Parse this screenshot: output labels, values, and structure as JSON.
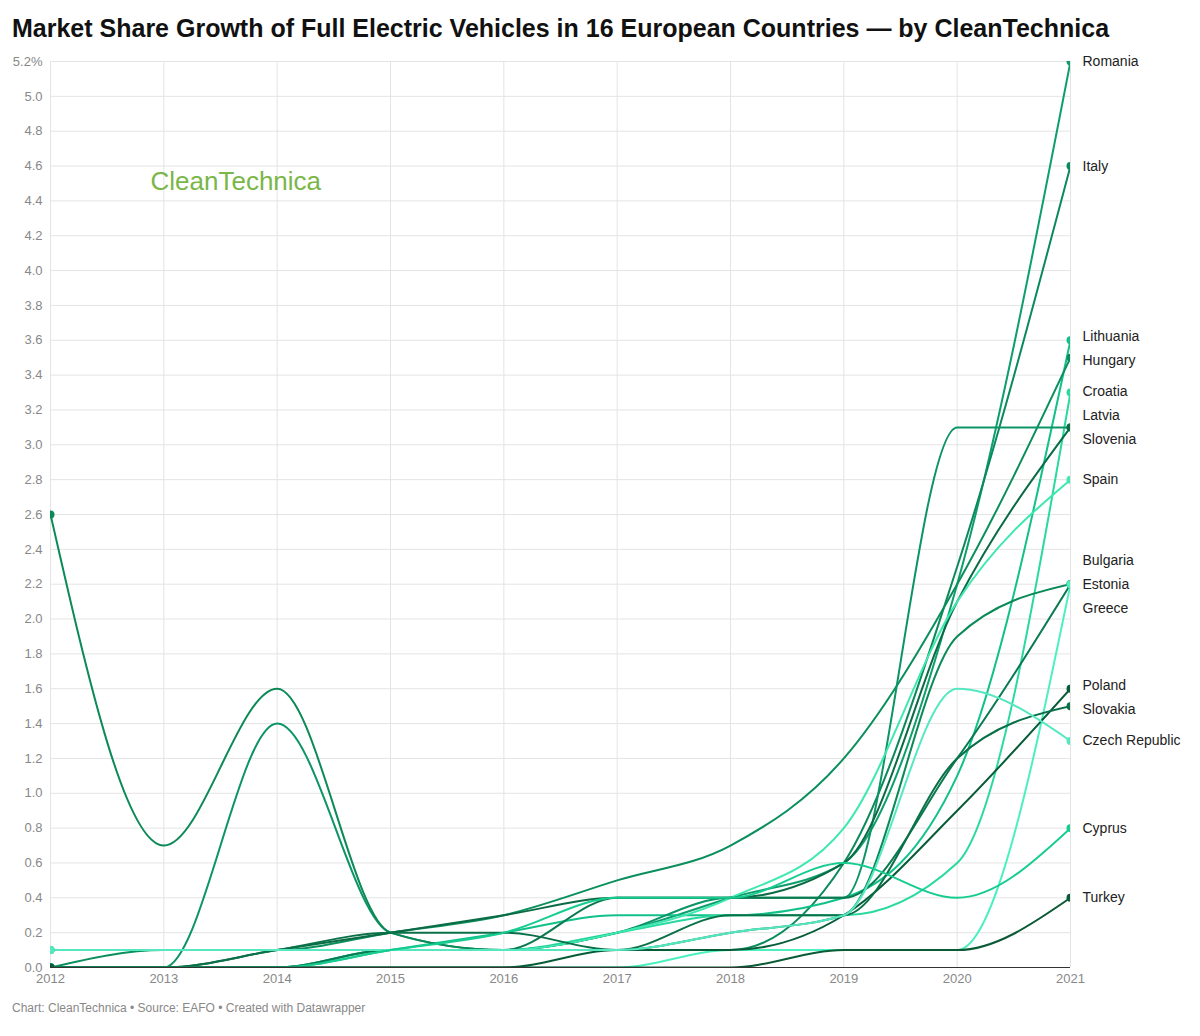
{
  "chart_data": {
    "type": "line",
    "title": "Market Share Growth of Full Electric Vehicles in 16 European Countries — by CleanTechnica",
    "watermark": "CleanTechnica",
    "caption": "Chart: CleanTechnica • Source: EAFO • Created with Datawrapper",
    "x": [
      2012,
      2013,
      2014,
      2015,
      2016,
      2017,
      2018,
      2019,
      2020,
      2021
    ],
    "xlim": [
      2012,
      2021
    ],
    "xticks": [
      2012,
      2013,
      2014,
      2015,
      2016,
      2017,
      2018,
      2019,
      2020,
      2021
    ],
    "ylim": [
      0,
      5.2
    ],
    "yticks": [
      {
        "value": 0,
        "label": "0.0"
      },
      0.2,
      0.4,
      0.6,
      0.8,
      {
        "value": 1,
        "label": "1.0"
      },
      1.2,
      1.4,
      1.6,
      1.8,
      {
        "value": 2,
        "label": "2.0"
      },
      2.2,
      2.4,
      2.6,
      2.8,
      {
        "value": 3,
        "label": "3.0"
      },
      3.2,
      3.4,
      3.6,
      3.8,
      {
        "value": 4,
        "label": "4.0"
      },
      4.2,
      4.4,
      4.6,
      4.8,
      {
        "value": 5,
        "label": "5.0"
      },
      {
        "value": 5.2,
        "label": "5.2%"
      }
    ],
    "grid": true,
    "marker": "circle",
    "series": [
      {
        "name": "Romania",
        "color": "#0e9e6e",
        "values": [
          0,
          0,
          0,
          0.1,
          0.1,
          0.2,
          0.4,
          0.6,
          2.2,
          5.2
        ]
      },
      {
        "name": "Italy",
        "color": "#0a8a5a",
        "values": [
          0.1,
          0.1,
          0.1,
          0.1,
          0.1,
          0.1,
          0.1,
          0.6,
          2.3,
          4.6
        ]
      },
      {
        "name": "Lithuania",
        "color": "#12c18a",
        "values": [
          0,
          0,
          0,
          0.1,
          0.2,
          0.3,
          0.3,
          0.4,
          1.1,
          3.6
        ]
      },
      {
        "name": "Hungary",
        "color": "#0a8f5c",
        "values": [
          0,
          0.1,
          0.1,
          0.2,
          0.3,
          0.5,
          0.7,
          1.2,
          2.2,
          3.5
        ]
      },
      {
        "name": "Croatia",
        "color": "#2ad9a0",
        "values": [
          0,
          0,
          0,
          0.1,
          0.1,
          0.2,
          0.3,
          0.3,
          0.6,
          3.3
        ]
      },
      {
        "name": "Latvia",
        "color": "#0b9466",
        "values": [
          0,
          0,
          1.4,
          0.2,
          0.1,
          0.2,
          0.4,
          0.4,
          3.1,
          3.1
        ]
      },
      {
        "name": "Slovenia",
        "color": "#0b6b45",
        "values": [
          0,
          0,
          0.1,
          0.2,
          0.3,
          0.4,
          0.4,
          0.6,
          2.1,
          3.1
        ]
      },
      {
        "name": "Spain",
        "color": "#3ee8b0",
        "values": [
          0.1,
          0.1,
          0.1,
          0.1,
          0.1,
          0.2,
          0.4,
          0.8,
          2.1,
          2.8
        ]
      },
      {
        "name": "Bulgaria",
        "color": "#0a7a50",
        "values": [
          0,
          0,
          0,
          0.1,
          0.1,
          0.4,
          0.4,
          0.4,
          1.2,
          2.2
        ]
      },
      {
        "name": "Estonia",
        "color": "#0b8a58",
        "values": [
          2.6,
          0.7,
          1.6,
          0.2,
          0.1,
          0.1,
          0.2,
          0.3,
          1.9,
          2.2
        ]
      },
      {
        "name": "Greece",
        "color": "#4cf0bf",
        "values": [
          0,
          0,
          0,
          0,
          0,
          0,
          0.1,
          0.1,
          0.1,
          2.2
        ]
      },
      {
        "name": "Poland",
        "color": "#075c38",
        "values": [
          0,
          0,
          0,
          0,
          0,
          0.1,
          0.1,
          0.3,
          0.9,
          1.6
        ]
      },
      {
        "name": "Slovakia",
        "color": "#0a7048",
        "values": [
          0,
          0,
          0.1,
          0.2,
          0.2,
          0.1,
          0.3,
          0.3,
          1.2,
          1.5
        ]
      },
      {
        "name": "Czech Republic",
        "color": "#55e8c0",
        "values": [
          0.1,
          0.1,
          0.1,
          0.1,
          0.1,
          0.1,
          0.2,
          0.3,
          1.6,
          1.3
        ]
      },
      {
        "name": "Cyprus",
        "color": "#16cc90",
        "values": [
          0,
          0,
          0,
          0.1,
          0.2,
          0.4,
          0.4,
          0.6,
          0.4,
          0.8
        ]
      },
      {
        "name": "Turkey",
        "color": "#0a5a35",
        "values": [
          0,
          0,
          0,
          0,
          0,
          0,
          0,
          0.1,
          0.1,
          0.4
        ]
      }
    ]
  }
}
